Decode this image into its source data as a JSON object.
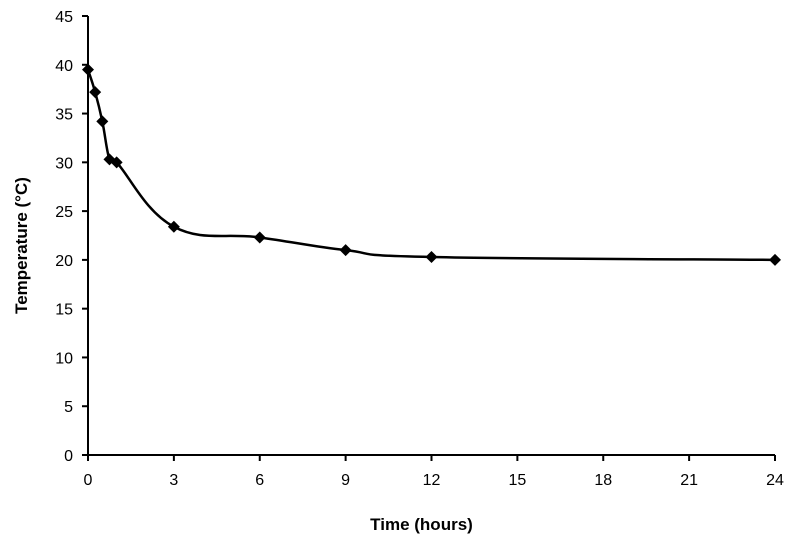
{
  "chart_data": {
    "type": "line",
    "title": "",
    "xlabel": "Time (hours)",
    "ylabel": "Temperature (°C)",
    "xlim": [
      0,
      24
    ],
    "ylim": [
      0,
      45
    ],
    "xticks": [
      0,
      3,
      6,
      9,
      12,
      15,
      18,
      21,
      24
    ],
    "yticks": [
      0,
      5,
      10,
      15,
      20,
      25,
      30,
      35,
      40,
      45
    ],
    "grid": false,
    "legend": "none",
    "line_style": "smoothed",
    "marker": "diamond",
    "series": [
      {
        "x": [
          0,
          0.25,
          0.5,
          0.75,
          1,
          3,
          6,
          9,
          12,
          24
        ],
        "y": [
          39.5,
          37.2,
          34.2,
          30.3,
          30.0,
          23.4,
          22.3,
          21.0,
          20.3,
          20.0
        ]
      }
    ]
  }
}
